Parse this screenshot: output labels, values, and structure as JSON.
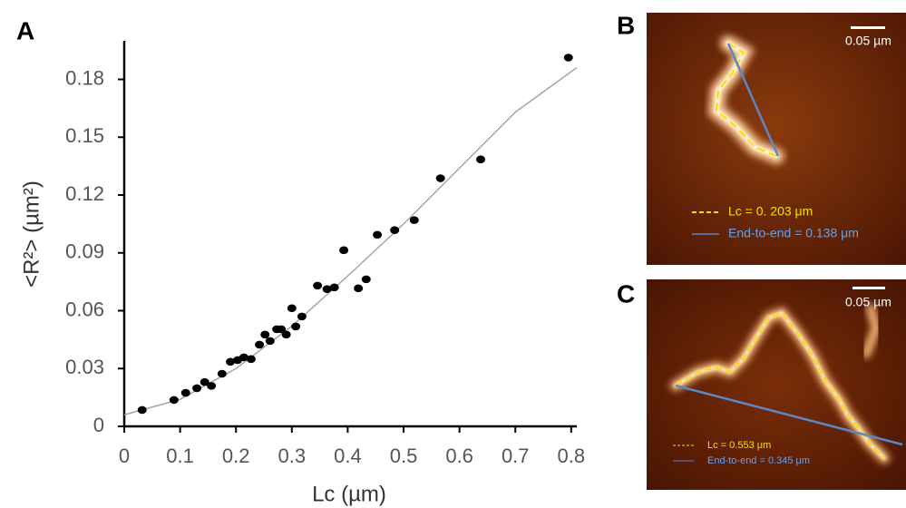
{
  "panel_labels": [
    "A",
    "B",
    "C"
  ],
  "images": [
    {
      "scale": "0.05 µm",
      "lc": "Lc = 0. 203 μm",
      "end_to_end": "End-to-end = 0.138 μm"
    },
    {
      "scale": "0.05 µm",
      "lc": "Lc = 0.553 μm",
      "end_to_end": "End-to-end = 0.345 μm"
    }
  ],
  "chart_data": {
    "type": "scatter",
    "x_label": "Lc (µm)",
    "y_label": "<R²> (µm²)",
    "x": [
      0.032,
      0.089,
      0.11,
      0.13,
      0.144,
      0.156,
      0.175,
      0.19,
      0.203,
      0.214,
      0.227,
      0.242,
      0.252,
      0.261,
      0.273,
      0.281,
      0.29,
      0.3,
      0.307,
      0.318,
      0.346,
      0.363,
      0.376,
      0.393,
      0.419,
      0.433,
      0.453,
      0.484,
      0.519,
      0.566,
      0.638,
      0.795
    ],
    "y": [
      0.0085,
      0.0137,
      0.0174,
      0.0198,
      0.023,
      0.021,
      0.0273,
      0.0335,
      0.0344,
      0.0358,
      0.0349,
      0.0424,
      0.0476,
      0.0443,
      0.0504,
      0.0504,
      0.0476,
      0.0613,
      0.0518,
      0.057,
      0.073,
      0.0712,
      0.0721,
      0.0914,
      0.0716,
      0.0763,
      0.0994,
      0.1018,
      0.107,
      0.1287,
      0.1385,
      0.1913
    ],
    "color": "#000000",
    "fit": {
      "x": [
        0,
        0.1,
        0.2,
        0.3,
        0.4,
        0.5,
        0.6,
        0.7,
        0.8,
        0.81
      ],
      "y": [
        0.006,
        0.014,
        0.03,
        0.052,
        0.078,
        0.105,
        0.134,
        0.163,
        0.184,
        0.186
      ],
      "color": "#a6a6a6"
    },
    "xlim": [
      0,
      0.81
    ],
    "ylim": [
      0,
      0.2
    ],
    "xticks": [
      0,
      0.1,
      0.2,
      0.3,
      0.4,
      0.5,
      0.6,
      0.7,
      0.8
    ],
    "yticks": [
      0,
      0.03,
      0.06,
      0.09,
      0.12,
      0.15,
      0.18
    ],
    "grid": false
  }
}
